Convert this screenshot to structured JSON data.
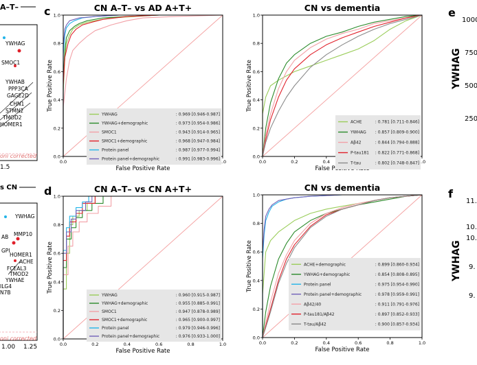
{
  "panel_labels": {
    "c": "c",
    "d": "d",
    "e": "e",
    "f": "f"
  },
  "left_fragments": {
    "top_title_frag": "A–T–",
    "top_labels": [
      "YWHAG",
      "SMOC1",
      "YWHAB",
      "PPP3CA",
      "GAGE2D",
      "CHN1",
      "STMN2",
      "TMOD2",
      "HOMER1"
    ],
    "top_corrected": "oni corrected",
    "top_tick": "1.5",
    "bottom_title_frag": "s CN",
    "bottom_labels": [
      "YWHAG",
      "MMP10",
      "AB",
      "GPI",
      "HOMER1",
      "ACHE",
      "FCEAL3",
      "TMOD2",
      "YWHAE",
      "ILG4",
      "N7B"
    ],
    "bottom_corrected": "oni corrected",
    "bottom_ticks": [
      "1.00",
      "1.25"
    ]
  },
  "right_fragments": {
    "e_axis_label": "YWHAG",
    "e_ticks": [
      "1000",
      "750",
      "500",
      "250"
    ],
    "f_axis_label": "YWHAG",
    "f_ticks": [
      "11.",
      "10.",
      "10.",
      "9.",
      "9."
    ]
  },
  "colors": {
    "green_light": "#9acd5a",
    "green_dark": "#2a8a2a",
    "pink": "#f2a0a6",
    "red": "#e0202a",
    "cyan": "#22b4e8",
    "purple": "#7060b8",
    "gray": "#8a8a8a",
    "diag": "#f4a0a0"
  },
  "chart_data": [
    {
      "id": "c1",
      "type": "line",
      "title": "CN A–T– vs AD A+T+",
      "xlabel": "False Positive Rate",
      "ylabel": "True Positive Rate",
      "xlim": [
        0,
        1
      ],
      "ylim": [
        0,
        1
      ],
      "xticks": [
        "0.0",
        "0.2",
        "0.4",
        "0.6",
        "0.8",
        "1.0"
      ],
      "yticks": [
        "0.0",
        "0.2",
        "0.4",
        "0.6",
        "0.8",
        "1.0"
      ],
      "legend_position": "lower-right",
      "series": [
        {
          "name": "YWHAG",
          "auc": ": 0.969 [0.946-0.987]",
          "color": "#9acd5a",
          "x": [
            0,
            0,
            0.01,
            0.02,
            0.04,
            0.06,
            0.1,
            0.15,
            0.2,
            0.3,
            0.45,
            0.6,
            1
          ],
          "y": [
            0,
            0.45,
            0.7,
            0.8,
            0.86,
            0.9,
            0.93,
            0.95,
            0.96,
            0.98,
            0.99,
            1,
            1
          ]
        },
        {
          "name": "YWHAG+demographic",
          "auc": ": 0.973 [0.954-0.986]",
          "color": "#2a8a2a",
          "x": [
            0,
            0,
            0.01,
            0.02,
            0.04,
            0.07,
            0.1,
            0.15,
            0.25,
            0.4,
            0.6,
            1
          ],
          "y": [
            0,
            0.55,
            0.75,
            0.84,
            0.89,
            0.92,
            0.94,
            0.96,
            0.98,
            0.99,
            1,
            1
          ]
        },
        {
          "name": "SMOC1",
          "auc": ": 0.943 [0.914-0.965]",
          "color": "#f2a0a6",
          "x": [
            0,
            0,
            0.02,
            0.04,
            0.06,
            0.1,
            0.15,
            0.2,
            0.3,
            0.4,
            0.5,
            0.7,
            1
          ],
          "y": [
            0,
            0.35,
            0.55,
            0.68,
            0.75,
            0.8,
            0.85,
            0.89,
            0.93,
            0.96,
            0.98,
            0.99,
            1
          ]
        },
        {
          "name": "SMOC1+demographic",
          "auc": ": 0.968 [0.947-0.984]",
          "color": "#e0202a",
          "x": [
            0,
            0,
            0.01,
            0.03,
            0.05,
            0.08,
            0.12,
            0.18,
            0.25,
            0.4,
            0.6,
            1
          ],
          "y": [
            0,
            0.5,
            0.7,
            0.8,
            0.86,
            0.9,
            0.93,
            0.95,
            0.97,
            0.99,
            1,
            1
          ]
        },
        {
          "name": "Protein panel",
          "auc": ": 0.987 [0.977-0.994]",
          "color": "#22b4e8",
          "x": [
            0,
            0,
            0.01,
            0.02,
            0.04,
            0.07,
            0.12,
            0.2,
            0.35,
            0.6,
            1
          ],
          "y": [
            0,
            0.72,
            0.86,
            0.91,
            0.94,
            0.96,
            0.98,
            0.99,
            1,
            1,
            1
          ]
        },
        {
          "name": "Protein panel+demographic",
          "auc": ": 0.991 [0.983-0.996]",
          "color": "#7060b8",
          "x": [
            0,
            0,
            0.01,
            0.02,
            0.04,
            0.07,
            0.1,
            0.2,
            0.35,
            0.6,
            1
          ],
          "y": [
            0,
            0.78,
            0.9,
            0.93,
            0.96,
            0.97,
            0.98,
            0.99,
            1,
            1,
            1
          ]
        }
      ]
    },
    {
      "id": "c2",
      "type": "line",
      "title": "CN vs dementia",
      "xlabel": "False Positive Rate",
      "ylabel": "True Positive Rate",
      "xlim": [
        0,
        1
      ],
      "ylim": [
        0,
        1
      ],
      "xticks": [
        "0.0",
        "0.2",
        "0.4",
        "0.6",
        "0.8",
        "1.0"
      ],
      "yticks": [
        "0.0",
        "0.2",
        "0.4",
        "0.6",
        "0.8",
        "1.0"
      ],
      "legend_position": "lower-right",
      "series": [
        {
          "name": "ACHE",
          "auc": ": 0.781 [0.711-0.846]",
          "color": "#9acd5a",
          "x": [
            0,
            0,
            0.02,
            0.05,
            0.1,
            0.15,
            0.2,
            0.3,
            0.4,
            0.5,
            0.6,
            0.7,
            0.8,
            0.9,
            1
          ],
          "y": [
            0,
            0.3,
            0.42,
            0.5,
            0.54,
            0.57,
            0.6,
            0.64,
            0.68,
            0.72,
            0.76,
            0.82,
            0.9,
            0.96,
            1
          ]
        },
        {
          "name": "YWHAG",
          "auc": ": 0.857 [0.809-0.900]",
          "color": "#2a8a2a",
          "x": [
            0,
            0.02,
            0.05,
            0.1,
            0.15,
            0.2,
            0.3,
            0.4,
            0.5,
            0.6,
            0.7,
            0.8,
            0.9,
            1
          ],
          "y": [
            0,
            0.2,
            0.38,
            0.55,
            0.66,
            0.72,
            0.8,
            0.85,
            0.88,
            0.92,
            0.95,
            0.97,
            0.99,
            1
          ]
        },
        {
          "name": "Aβ42",
          "auc": ": 0.844 [0.794-0.888]",
          "color": "#f2a0a6",
          "x": [
            0,
            0.02,
            0.05,
            0.1,
            0.15,
            0.2,
            0.3,
            0.4,
            0.5,
            0.6,
            0.7,
            0.8,
            0.9,
            1
          ],
          "y": [
            0,
            0.15,
            0.3,
            0.48,
            0.6,
            0.68,
            0.77,
            0.83,
            0.87,
            0.9,
            0.94,
            0.96,
            0.98,
            1
          ]
        },
        {
          "name": "P-tau181",
          "auc": ": 0.822 [0.771-0.868]",
          "color": "#e0202a",
          "x": [
            0,
            0.02,
            0.05,
            0.1,
            0.15,
            0.2,
            0.3,
            0.4,
            0.5,
            0.6,
            0.7,
            0.8,
            0.9,
            1
          ],
          "y": [
            0,
            0.12,
            0.26,
            0.42,
            0.54,
            0.62,
            0.72,
            0.79,
            0.84,
            0.88,
            0.92,
            0.95,
            0.98,
            1
          ]
        },
        {
          "name": "T-tau",
          "auc": ": 0.802 [0.748-0.847]",
          "color": "#8a8a8a",
          "x": [
            0,
            0.02,
            0.05,
            0.1,
            0.15,
            0.2,
            0.3,
            0.4,
            0.5,
            0.6,
            0.7,
            0.8,
            0.9,
            1
          ],
          "y": [
            0,
            0.1,
            0.2,
            0.32,
            0.42,
            0.5,
            0.63,
            0.72,
            0.79,
            0.85,
            0.9,
            0.94,
            0.97,
            1
          ]
        }
      ]
    },
    {
      "id": "d1",
      "type": "line",
      "title": "CN A–T– vs CN A+T+",
      "xlabel": "False Positive Rate",
      "ylabel": "True Positive Rate",
      "xlim": [
        0,
        1
      ],
      "ylim": [
        0,
        1
      ],
      "xticks": [
        "0.0",
        "0.2",
        "0.4",
        "0.6",
        "0.8",
        "1.0"
      ],
      "yticks": [
        "0.0",
        "0.2",
        "0.4",
        "0.6",
        "0.8",
        "1.0"
      ],
      "legend_position": "lower-right",
      "series": [
        {
          "name": "YWHAG",
          "auc": ": 0.960 [0.915-0.987]",
          "color": "#9acd5a",
          "x": [
            0,
            0,
            0.02,
            0.02,
            0.04,
            0.04,
            0.06,
            0.06,
            0.1,
            0.1,
            0.15,
            0.15,
            0.2,
            0.2,
            1
          ],
          "y": [
            0,
            0.35,
            0.35,
            0.6,
            0.6,
            0.8,
            0.8,
            0.86,
            0.86,
            0.9,
            0.9,
            0.95,
            0.95,
            1,
            1
          ]
        },
        {
          "name": "YWHAG+demographic",
          "auc": ": 0.955 [0.885-0.991]",
          "color": "#2a8a2a",
          "x": [
            0,
            0,
            0.02,
            0.02,
            0.05,
            0.05,
            0.08,
            0.08,
            0.12,
            0.12,
            0.18,
            0.18,
            0.25,
            0.25,
            1
          ],
          "y": [
            0,
            0.5,
            0.5,
            0.7,
            0.7,
            0.78,
            0.78,
            0.85,
            0.85,
            0.9,
            0.9,
            0.95,
            0.95,
            1,
            1
          ]
        },
        {
          "name": "SMOC1",
          "auc": ": 0.947 [0.878-0.989]",
          "color": "#f2a0a6",
          "x": [
            0,
            0,
            0.03,
            0.03,
            0.06,
            0.06,
            0.1,
            0.1,
            0.15,
            0.15,
            0.22,
            0.22,
            0.3,
            0.3,
            1
          ],
          "y": [
            0,
            0.45,
            0.45,
            0.65,
            0.65,
            0.75,
            0.75,
            0.82,
            0.82,
            0.88,
            0.88,
            0.93,
            0.93,
            1,
            1
          ]
        },
        {
          "name": "SMOC1+demographic",
          "auc": ": 0.965 [0.900-0.997]",
          "color": "#e0202a",
          "x": [
            0,
            0,
            0.02,
            0.02,
            0.04,
            0.04,
            0.08,
            0.08,
            0.12,
            0.12,
            0.2,
            0.2,
            1
          ],
          "y": [
            0,
            0.55,
            0.55,
            0.72,
            0.72,
            0.82,
            0.82,
            0.88,
            0.88,
            0.95,
            0.95,
            1,
            1
          ]
        },
        {
          "name": "Protein panel",
          "auc": ": 0.979 [0.946-0.996]",
          "color": "#22b4e8",
          "x": [
            0,
            0,
            0.02,
            0.02,
            0.04,
            0.04,
            0.08,
            0.08,
            0.12,
            0.12,
            0.16,
            0.16,
            1
          ],
          "y": [
            0,
            0.62,
            0.62,
            0.78,
            0.78,
            0.86,
            0.86,
            0.92,
            0.92,
            0.96,
            0.96,
            1,
            1
          ]
        },
        {
          "name": "Protein panel+demographic",
          "auc": ": 0.976 [0.933-1.000]",
          "color": "#7060b8",
          "x": [
            0,
            0,
            0.02,
            0.02,
            0.05,
            0.05,
            0.08,
            0.08,
            0.14,
            0.14,
            0.18,
            0.18,
            1
          ],
          "y": [
            0,
            0.6,
            0.6,
            0.75,
            0.75,
            0.84,
            0.84,
            0.9,
            0.9,
            0.96,
            0.96,
            1,
            1
          ]
        }
      ]
    },
    {
      "id": "d2",
      "type": "line",
      "title": "CN vs dementia",
      "xlabel": "False Positive Rate",
      "ylabel": "True Positive Rate",
      "xlim": [
        0,
        1
      ],
      "ylim": [
        0,
        1
      ],
      "xticks": [
        "0.0",
        "0.2",
        "0.4",
        "0.6",
        "0.8",
        "1.0"
      ],
      "yticks": [
        "0.0",
        "0.2",
        "0.4",
        "0.6",
        "0.8",
        "1.0"
      ],
      "legend_position": "lower-right",
      "series": [
        {
          "name": "ACHE+demographic",
          "auc": ": 0.899 [0.860-0.934]",
          "color": "#9acd5a",
          "x": [
            0,
            0,
            0.02,
            0.05,
            0.1,
            0.15,
            0.2,
            0.3,
            0.4,
            0.5,
            0.6,
            0.7,
            0.8,
            0.9,
            1
          ],
          "y": [
            0,
            0.3,
            0.6,
            0.68,
            0.74,
            0.78,
            0.82,
            0.87,
            0.9,
            0.92,
            0.94,
            0.96,
            0.98,
            0.99,
            1
          ]
        },
        {
          "name": "YWHAG+demographic",
          "auc": ": 0.854 [0.808-0.895]",
          "color": "#2a8a2a",
          "x": [
            0,
            0.02,
            0.05,
            0.1,
            0.15,
            0.2,
            0.3,
            0.4,
            0.5,
            0.6,
            0.7,
            0.8,
            0.9,
            1
          ],
          "y": [
            0,
            0.18,
            0.36,
            0.55,
            0.66,
            0.74,
            0.82,
            0.87,
            0.9,
            0.93,
            0.95,
            0.97,
            0.99,
            1
          ]
        },
        {
          "name": "Protein panel",
          "auc": ": 0.975 [0.954-0.990]",
          "color": "#22b4e8",
          "x": [
            0,
            0,
            0.01,
            0.02,
            0.04,
            0.06,
            0.1,
            0.15,
            0.2,
            0.3,
            0.5,
            1
          ],
          "y": [
            0,
            0.55,
            0.72,
            0.82,
            0.88,
            0.92,
            0.95,
            0.97,
            0.98,
            0.99,
            1,
            1
          ]
        },
        {
          "name": "Protein panel+demographic",
          "auc": ": 0.978 [0.959-0.991]",
          "color": "#7060b8",
          "x": [
            0,
            0,
            0.01,
            0.02,
            0.04,
            0.06,
            0.1,
            0.15,
            0.2,
            0.3,
            0.5,
            1
          ],
          "y": [
            0,
            0.6,
            0.76,
            0.85,
            0.9,
            0.93,
            0.96,
            0.97,
            0.98,
            0.99,
            1,
            1
          ]
        },
        {
          "name": "Aβ42/40",
          "auc": ": 0.911 [0.791-0.976]",
          "color": "#f2a0a6",
          "x": [
            0,
            0.02,
            0.05,
            0.1,
            0.15,
            0.2,
            0.3,
            0.4,
            0.5,
            0.6,
            0.7,
            0.8,
            0.9,
            1
          ],
          "y": [
            0,
            0.1,
            0.25,
            0.45,
            0.58,
            0.68,
            0.8,
            0.87,
            0.91,
            0.94,
            0.96,
            0.98,
            0.99,
            1
          ]
        },
        {
          "name": "P-tau181/Aβ42",
          "auc": ": 0.897 [0.852-0.933]",
          "color": "#e0202a",
          "x": [
            0,
            0.02,
            0.05,
            0.1,
            0.15,
            0.2,
            0.3,
            0.4,
            0.5,
            0.6,
            0.7,
            0.8,
            0.9,
            1
          ],
          "y": [
            0,
            0.08,
            0.2,
            0.4,
            0.55,
            0.65,
            0.78,
            0.86,
            0.9,
            0.93,
            0.96,
            0.98,
            0.99,
            1
          ]
        },
        {
          "name": "T-tau/Aβ42",
          "auc": ": 0.900 [0.857-0.934]",
          "color": "#8a8a8a",
          "x": [
            0,
            0.02,
            0.05,
            0.1,
            0.15,
            0.2,
            0.3,
            0.4,
            0.5,
            0.6,
            0.7,
            0.8,
            0.9,
            1
          ],
          "y": [
            0,
            0.07,
            0.18,
            0.38,
            0.52,
            0.63,
            0.77,
            0.85,
            0.9,
            0.93,
            0.96,
            0.98,
            0.99,
            1
          ]
        }
      ]
    }
  ]
}
